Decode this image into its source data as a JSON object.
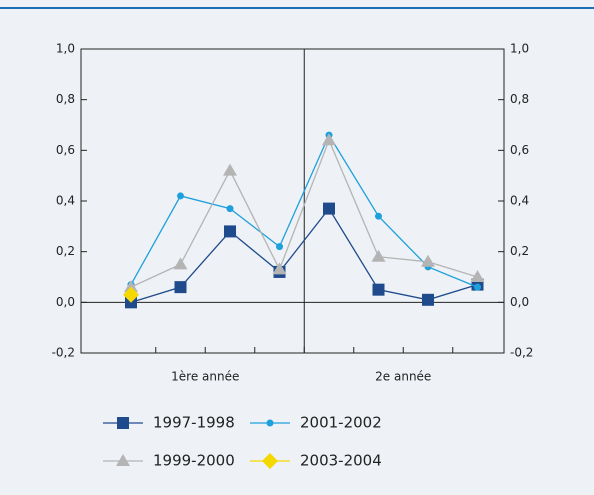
{
  "chart_data": {
    "type": "line",
    "categories": [
      null,
      null,
      null,
      null,
      null,
      null,
      null,
      null
    ],
    "group_labels": [
      "1ère année",
      "2e année"
    ],
    "series": [
      {
        "name": "1997-1998",
        "color": "#1f4a8c",
        "marker": "square",
        "values": [
          0.0,
          0.06,
          0.28,
          0.12,
          0.37,
          0.05,
          0.01,
          0.07
        ]
      },
      {
        "name": "2001-2002",
        "color": "#1ea0dc",
        "marker": "circle",
        "values": [
          0.07,
          0.42,
          0.37,
          0.22,
          0.66,
          0.34,
          0.14,
          0.06
        ]
      },
      {
        "name": "1999-2000",
        "color": "#b4b4b4",
        "marker": "triangle",
        "values": [
          0.06,
          0.15,
          0.52,
          0.13,
          0.64,
          0.18,
          0.16,
          0.1
        ]
      },
      {
        "name": "2003-2004",
        "color": "#f5d800",
        "marker": "diamond",
        "values": [
          0.03,
          null,
          null,
          null,
          null,
          null,
          null,
          null
        ]
      }
    ],
    "ylim": [
      -0.2,
      1.0
    ],
    "yticks": [
      {
        "value": -0.2,
        "label": "-0,2"
      },
      {
        "value": 0.0,
        "label": "0,0"
      },
      {
        "value": 0.2,
        "label": "0,2"
      },
      {
        "value": 0.4,
        "label": "0,4"
      },
      {
        "value": 0.6,
        "label": "0,6"
      },
      {
        "value": 0.8,
        "label": "0,8"
      },
      {
        "value": 1.0,
        "label": "1,0"
      }
    ],
    "y2lim": [
      -0.2,
      1.0
    ],
    "y2ticks": [
      {
        "value": -0.2,
        "label": "-0,2"
      },
      {
        "value": 0.0,
        "label": "0,0"
      },
      {
        "value": 0.2,
        "label": "0,2"
      },
      {
        "value": 0.4,
        "label": "0,4"
      },
      {
        "value": 0.6,
        "label": "0,6"
      },
      {
        "value": 0.8,
        "label": "0,8"
      },
      {
        "value": 1.0,
        "label": "1,0"
      }
    ],
    "grid": false
  }
}
